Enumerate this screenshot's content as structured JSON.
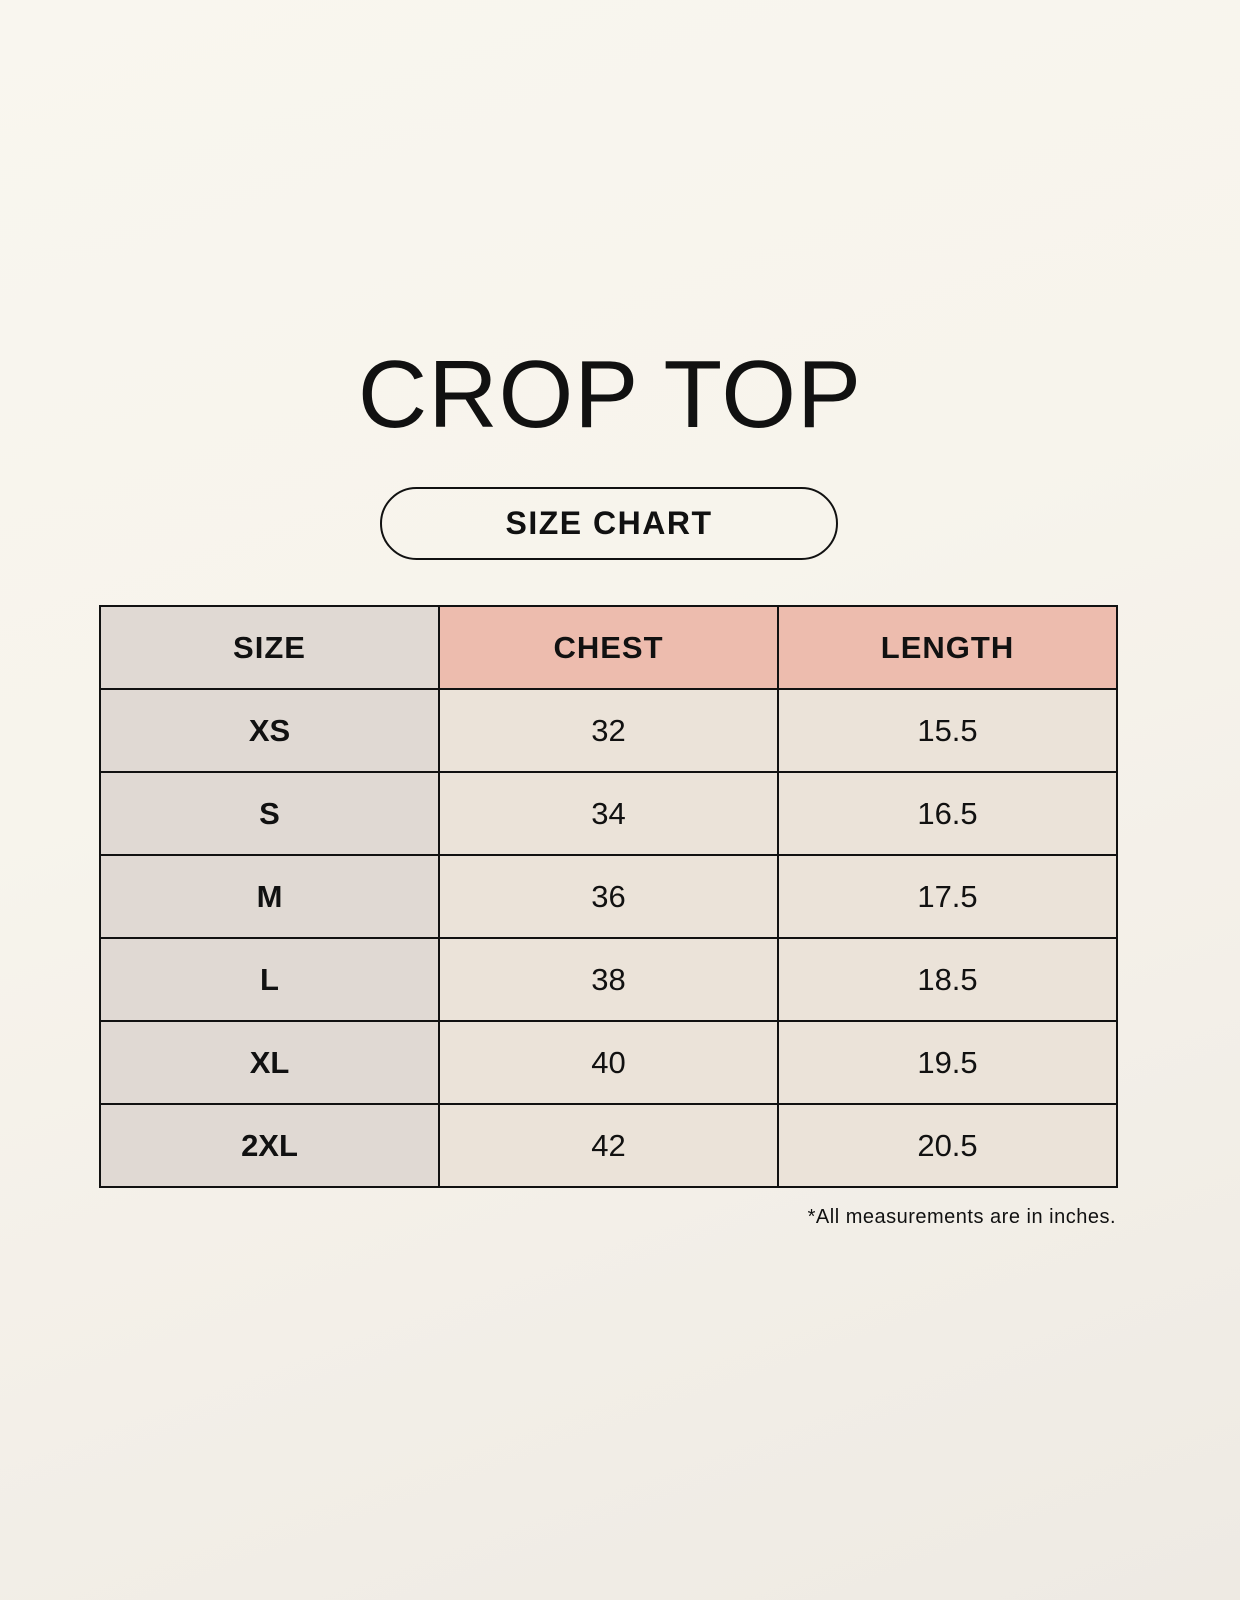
{
  "title": "CROP TOP",
  "subtitle": "SIZE CHART",
  "colors": {
    "size_column": "#e0d9d3",
    "header_accent": "#edbcae",
    "cell": "#ebe3d9"
  },
  "table": {
    "headers": [
      "SIZE",
      "CHEST",
      "LENGTH"
    ],
    "rows": [
      [
        "XS",
        "32",
        "15.5"
      ],
      [
        "S",
        "34",
        "16.5"
      ],
      [
        "M",
        "36",
        "17.5"
      ],
      [
        "L",
        "38",
        "18.5"
      ],
      [
        "XL",
        "40",
        "19.5"
      ],
      [
        "2XL",
        "42",
        "20.5"
      ]
    ]
  },
  "note": "*All measurements are in inches."
}
